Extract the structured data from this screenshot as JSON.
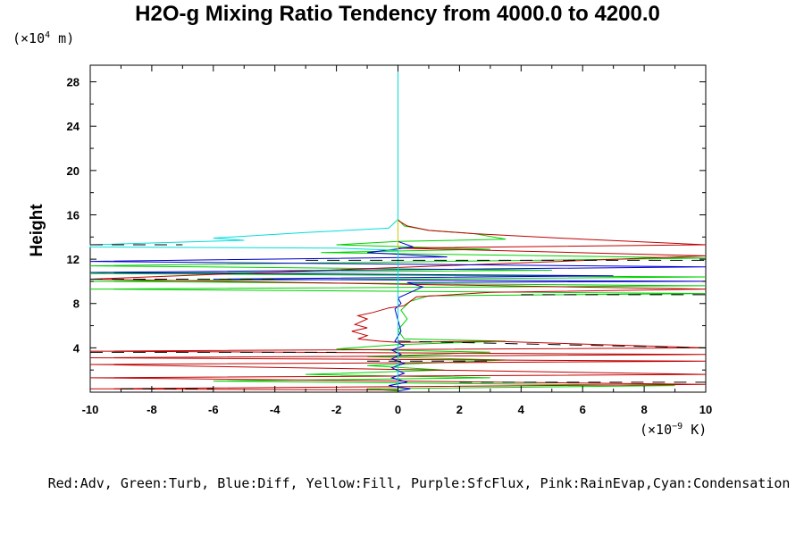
{
  "chart_data": {
    "type": "line",
    "title": "H2O-g Mixing Ratio Tendency from 4000.0 to 4200.0",
    "ylabel": "Height",
    "y_unit": {
      "prefix": "(×10",
      "exp": "4",
      "suffix": " m)"
    },
    "x_unit": {
      "prefix": "(×10",
      "exp": "−9",
      "suffix": " K)"
    },
    "legend_text": "Red:Adv, Green:Turb, Blue:Diff, Yellow:Fill, Purple:SfcFlux, Pink:RainEvap,Cyan:Condensation",
    "xlim": [
      -10,
      10
    ],
    "ylim": [
      0,
      29.5
    ],
    "x_ticks": [
      -10,
      -8,
      -6,
      -4,
      -2,
      0,
      2,
      4,
      6,
      8,
      10
    ],
    "x_tick_labels": [
      "-10",
      "-8",
      "-6",
      "-4",
      "-2",
      "0",
      "2",
      "4",
      "6",
      "8",
      "10"
    ],
    "y_ticks": [
      4,
      8,
      12,
      16,
      20,
      24,
      28
    ],
    "y_tick_labels": [
      "4",
      "8",
      "12",
      "16",
      "20",
      "24",
      "28"
    ],
    "series": [
      {
        "name": "Adv",
        "color": "#c00000",
        "points": [
          [
            0,
            29.5
          ],
          [
            0,
            15.5
          ],
          [
            0.3,
            15.0
          ],
          [
            1.0,
            14.6
          ],
          [
            2.5,
            14.3
          ],
          [
            6.0,
            13.8
          ],
          [
            10,
            13.3
          ],
          [
            0,
            13.0
          ],
          [
            10,
            12.3
          ],
          [
            -10,
            10.2
          ],
          [
            10,
            9.3
          ],
          [
            3,
            9.0
          ],
          [
            0.6,
            8.6
          ],
          [
            0.2,
            7.8
          ],
          [
            -0.3,
            7.6
          ],
          [
            -0.8,
            7.2
          ],
          [
            -1.3,
            6.9
          ],
          [
            -1.0,
            6.6
          ],
          [
            -1.4,
            6.1
          ],
          [
            -1.0,
            5.8
          ],
          [
            -1.5,
            5.5
          ],
          [
            -1.0,
            5.1
          ],
          [
            -1.3,
            4.8
          ],
          [
            -0.6,
            4.6
          ],
          [
            0,
            4.5
          ],
          [
            3.0,
            4.6
          ],
          [
            10,
            4.0
          ],
          [
            -10,
            3.7
          ],
          [
            10,
            3.4
          ],
          [
            -10,
            3.1
          ],
          [
            10,
            2.8
          ],
          [
            -10,
            2.5
          ],
          [
            10,
            1.6
          ],
          [
            -10,
            1.3
          ],
          [
            10,
            0.7
          ],
          [
            -10,
            0.3
          ],
          [
            0,
            0.2
          ]
        ]
      },
      {
        "name": "Turb",
        "color": "#00d000",
        "points": [
          [
            0,
            29.5
          ],
          [
            0,
            15.6
          ],
          [
            0.2,
            15.0
          ],
          [
            1.0,
            14.6
          ],
          [
            2.5,
            14.3
          ],
          [
            3.5,
            13.8
          ],
          [
            0,
            13.6
          ],
          [
            -2,
            13.3
          ],
          [
            3,
            12.9
          ],
          [
            -2.5,
            12.6
          ],
          [
            10,
            12.1
          ],
          [
            -10,
            11.4
          ],
          [
            5,
            11.0
          ],
          [
            -10,
            10.7
          ],
          [
            10,
            10.4
          ],
          [
            -10,
            10.0
          ],
          [
            10,
            9.6
          ],
          [
            -10,
            9.3
          ],
          [
            10,
            8.9
          ],
          [
            1.0,
            8.7
          ],
          [
            0.4,
            8.2
          ],
          [
            0.1,
            7.4
          ],
          [
            0.3,
            6.6
          ],
          [
            0,
            5.6
          ],
          [
            0.2,
            4.8
          ],
          [
            3.5,
            4.6
          ],
          [
            0,
            4.3
          ],
          [
            -2,
            3.9
          ],
          [
            3.0,
            3.6
          ],
          [
            -1.0,
            3.2
          ],
          [
            3.5,
            2.9
          ],
          [
            -1.0,
            2.4
          ],
          [
            1.5,
            2.0
          ],
          [
            -3.0,
            1.6
          ],
          [
            3.0,
            1.3
          ],
          [
            -6,
            1.0
          ],
          [
            9,
            0.6
          ],
          [
            -1,
            0.3
          ],
          [
            0,
            0.1
          ]
        ]
      },
      {
        "name": "Diff",
        "color": "#0000cc",
        "points": [
          [
            0,
            29.5
          ],
          [
            0,
            13.6
          ],
          [
            0.5,
            13.1
          ],
          [
            -1,
            12.6
          ],
          [
            1.6,
            12.2
          ],
          [
            -10,
            11.8
          ],
          [
            10,
            11.3
          ],
          [
            -10,
            10.8
          ],
          [
            7,
            10.5
          ],
          [
            -6,
            10.2
          ],
          [
            10,
            10.0
          ],
          [
            0.3,
            9.9
          ],
          [
            0.8,
            9.5
          ],
          [
            0.4,
            9.0
          ],
          [
            0.0,
            8.5
          ],
          [
            0.1,
            8.0
          ],
          [
            -0.1,
            7.5
          ],
          [
            0,
            6.5
          ],
          [
            0.1,
            5.5
          ],
          [
            -0.1,
            4.6
          ],
          [
            0.2,
            4.2
          ],
          [
            -0.2,
            3.8
          ],
          [
            0.1,
            3.4
          ],
          [
            -0.2,
            3.0
          ],
          [
            0.2,
            2.6
          ],
          [
            -0.2,
            2.2
          ],
          [
            0.2,
            1.7
          ],
          [
            -0.2,
            1.3
          ],
          [
            0.3,
            0.9
          ],
          [
            -0.3,
            0.6
          ],
          [
            0.4,
            0.3
          ],
          [
            0,
            0.1
          ]
        ]
      },
      {
        "name": "Condensation",
        "color": "#00dddd",
        "points": [
          [
            0,
            29.5
          ],
          [
            0,
            15.6
          ],
          [
            -0.3,
            14.8
          ],
          [
            -3,
            14.4
          ],
          [
            -6,
            13.9
          ],
          [
            -5,
            13.7
          ],
          [
            -10,
            13.3
          ],
          [
            -10,
            13.1
          ],
          [
            -2,
            13.0
          ],
          [
            0,
            12.8
          ],
          [
            0,
            0.0
          ]
        ]
      },
      {
        "name": "Fill",
        "color": "#cccc00",
        "points": [
          [
            0,
            29.5
          ],
          [
            0,
            0.0
          ]
        ]
      }
    ],
    "black_dashes": [
      [
        -10,
        13.3,
        -7,
        13.3
      ],
      [
        -3,
        11.9,
        10,
        11.9
      ],
      [
        -10,
        10.2,
        -4,
        10.2
      ],
      [
        4,
        8.8,
        10,
        8.8
      ],
      [
        0,
        4.6,
        10,
        4.0
      ],
      [
        -10,
        3.6,
        -2,
        3.6
      ],
      [
        -1,
        2.8,
        3,
        2.8
      ],
      [
        2,
        0.9,
        10,
        0.9
      ],
      [
        -9,
        0.3,
        -6,
        0.3
      ]
    ]
  }
}
